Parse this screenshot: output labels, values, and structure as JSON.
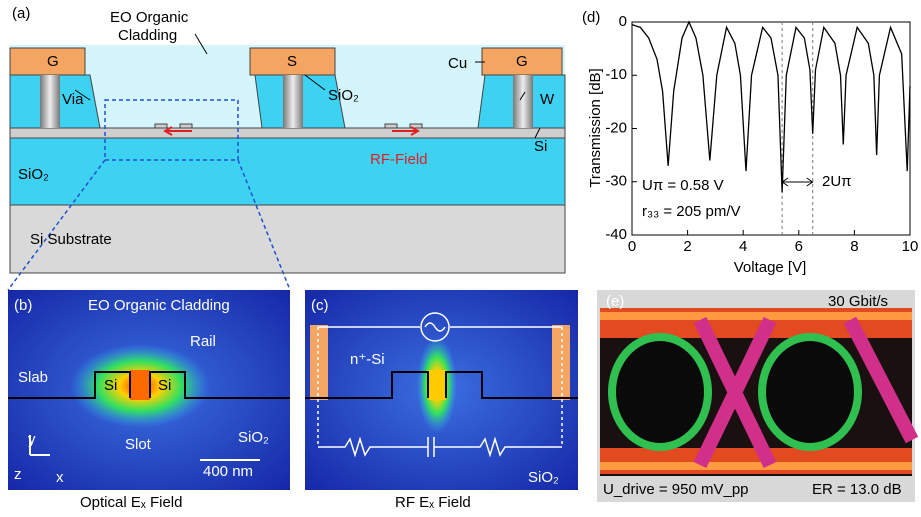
{
  "panel_a": {
    "label": "(a)",
    "cladding": [
      "EO Organic",
      "Cladding"
    ],
    "ground_left": "G",
    "signal": "S",
    "ground_right": "G",
    "via": "Via",
    "sio2_top": "SiO₂",
    "cu": "Cu",
    "w": "W",
    "si": "Si",
    "sio2_box": "SiO₂",
    "rf_field": "RF-Field",
    "substrate": "Si Substrate"
  },
  "panel_b": {
    "label": "(b)",
    "cladding": "EO Organic Cladding",
    "rail": "Rail",
    "slab": "Slab",
    "si_left": "Si",
    "si_right": "Si",
    "slot": "Slot",
    "sio2": "SiO₂",
    "scale": "400 nm",
    "axis_y": "y",
    "axis_z": "z",
    "axis_x": "x",
    "caption": "Optical Eₓ Field"
  },
  "panel_c": {
    "label": "(c)",
    "doping": "n⁺-Si",
    "sio2": "SiO₂",
    "caption": "RF Eₓ Field"
  },
  "panel_e": {
    "label": "(e)",
    "rate": "30 Gbit/s",
    "drive": "U_drive = 950 mV_pp",
    "er": "ER = 13.0 dB"
  },
  "chart_data": {
    "type": "line",
    "label": "(d)",
    "x_label": "Voltage [V]",
    "y_label": "Transmission [dB]",
    "annotations": [
      "Uπ = 0.58 V",
      "r₃₃ = 205 pm/V",
      "2Uπ"
    ],
    "xlim": [
      0,
      10
    ],
    "ylim": [
      -40,
      0
    ],
    "xticks": [
      0,
      2,
      4,
      6,
      8,
      10
    ],
    "yticks": [
      -40,
      -30,
      -20,
      -10,
      0
    ],
    "vlines": [
      5.4,
      6.5
    ],
    "x": [
      0,
      0.3,
      0.6,
      0.9,
      1.1,
      1.3,
      1.5,
      1.8,
      2.05,
      2.3,
      2.55,
      2.8,
      3.05,
      3.4,
      3.7,
      3.9,
      4.1,
      4.3,
      4.7,
      5.0,
      5.25,
      5.4,
      5.55,
      5.9,
      6.2,
      6.4,
      6.5,
      6.6,
      6.9,
      7.3,
      7.5,
      7.6,
      7.7,
      8.1,
      8.5,
      8.7,
      8.8,
      8.9,
      9.3,
      9.7,
      9.9,
      10
    ],
    "series": [
      {
        "color": "#000000",
        "values": [
          -0.5,
          -1,
          -3,
          -7,
          -13,
          -27,
          -13,
          -3,
          0,
          -3,
          -10,
          -26,
          -10,
          -1,
          -4,
          -10,
          -28,
          -10,
          -1,
          -3,
          -10,
          -32,
          -10,
          -1,
          -3,
          -9,
          -21,
          -9,
          -1,
          -4,
          -10,
          -23,
          -10,
          -1,
          -4,
          -10,
          -25,
          -10,
          -1,
          -6,
          -28,
          -12
        ]
      }
    ]
  }
}
